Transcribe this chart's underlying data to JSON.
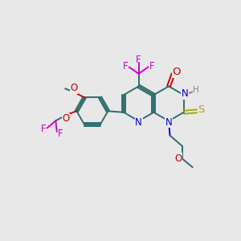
{
  "bg_color": "#e8e8e8",
  "bond_color": "#2d6e6e",
  "N_color": "#0000cc",
  "O_color": "#cc0000",
  "S_color": "#aaaa00",
  "F_color": "#cc00cc",
  "H_color": "#888888",
  "line_width": 1.4,
  "font_size": 8.5,
  "figsize": [
    3.0,
    3.0
  ],
  "dpi": 100,
  "xlim": [
    0,
    10
  ],
  "ylim": [
    0,
    10
  ]
}
